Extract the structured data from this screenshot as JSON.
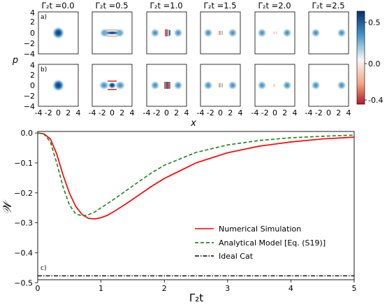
{
  "top_panels": {
    "column_titles": [
      "Γ₂t =0.0",
      "Γ₂t =0.5",
      "Γ₂t =1.0",
      "Γ₂t =1.5",
      "Γ₂t =2.0",
      "Γ₂t =2.5"
    ],
    "row_labels": [
      "a)",
      "b)"
    ],
    "y_axis_label": "p",
    "x_axis_label": "x",
    "x_tick_labels": [
      "-4",
      "-2",
      "0",
      "2",
      "4"
    ],
    "y_tick_labels": [
      "4",
      "2",
      "0",
      "−2",
      "−4"
    ],
    "colorbar_tick_labels": [
      "0.5",
      "0.0",
      "-0.4"
    ],
    "colorbar_colors": {
      "positive": "#08306b",
      "zero": "#f7f7f7",
      "negative": "#b2182b"
    }
  },
  "chart_data": {
    "type": "line",
    "panel_label": "c)",
    "xlabel": "Γ₂t",
    "ylabel": "𝒲",
    "xlim": [
      0,
      5
    ],
    "ylim": [
      -0.49,
      0.005
    ],
    "x_ticks": [
      0,
      1,
      2,
      3,
      4,
      5
    ],
    "y_ticks": [
      0.0,
      -0.1,
      -0.2,
      -0.3,
      -0.4,
      -0.5
    ],
    "y_tick_labels": [
      "0.0",
      "−0.1",
      "−0.2",
      "−0.3",
      "−0.4",
      "−0.5"
    ],
    "legend_position": "bottom-right",
    "grid": false,
    "series": [
      {
        "name": "Numerical Simulation",
        "color": "#ff0000",
        "style": "solid",
        "x": [
          0,
          0.1,
          0.2,
          0.3,
          0.4,
          0.5,
          0.6,
          0.7,
          0.8,
          0.9,
          1.0,
          1.1,
          1.2,
          1.4,
          1.6,
          1.8,
          2.0,
          2.5,
          3.0,
          3.5,
          4.0,
          4.5,
          5.0
        ],
        "y": [
          0.0,
          -0.003,
          -0.02,
          -0.07,
          -0.14,
          -0.2,
          -0.245,
          -0.272,
          -0.285,
          -0.287,
          -0.283,
          -0.275,
          -0.263,
          -0.236,
          -0.207,
          -0.178,
          -0.152,
          -0.1,
          -0.066,
          -0.044,
          -0.03,
          -0.02,
          -0.014
        ]
      },
      {
        "name": "Analytical Model [Eq. (S19)]",
        "color": "#228b22",
        "style": "dashed",
        "x": [
          0,
          0.1,
          0.2,
          0.3,
          0.4,
          0.5,
          0.6,
          0.7,
          0.8,
          0.9,
          1.0,
          1.2,
          1.4,
          1.6,
          1.8,
          2.0,
          2.5,
          3.0,
          3.5,
          4.0,
          4.5,
          5.0
        ],
        "y": [
          0.0,
          -0.004,
          -0.03,
          -0.1,
          -0.18,
          -0.24,
          -0.27,
          -0.277,
          -0.273,
          -0.264,
          -0.25,
          -0.222,
          -0.192,
          -0.162,
          -0.133,
          -0.108,
          -0.065,
          -0.04,
          -0.025,
          -0.016,
          -0.011,
          -0.007
        ]
      },
      {
        "name": "Ideal Cat",
        "color": "#000000",
        "style": "dashdot",
        "x": [
          0,
          5
        ],
        "y": [
          -0.477,
          -0.477
        ]
      }
    ]
  }
}
